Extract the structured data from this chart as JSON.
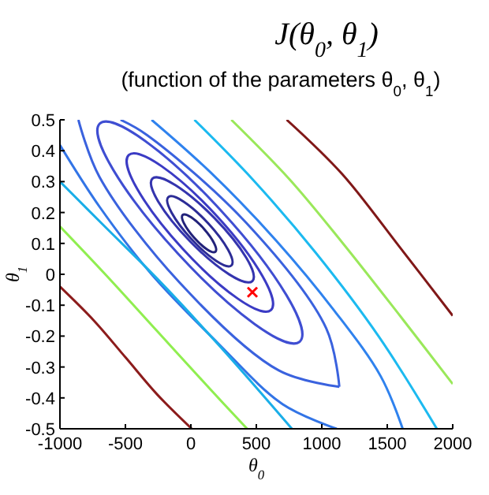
{
  "chart_data": {
    "type": "line",
    "title": "J(θ$_{0}$, θ$_{1}$)",
    "subtitle": "(function of the parameters θ$_{0}$, θ$_{1}$)",
    "xlabel": "θ$_{0}$",
    "ylabel": "θ$_{1}$",
    "xlim": [
      -1000,
      2000
    ],
    "xticks": [
      -1000,
      -500,
      0,
      500,
      1000,
      1500,
      2000
    ],
    "ylim": [
      -0.5,
      0.5
    ],
    "yticks": [
      -0.5,
      -0.4,
      -0.3,
      -0.2,
      -0.1,
      0,
      0.1,
      0.2,
      0.3,
      0.4,
      0.5
    ],
    "line_style": "solid",
    "series": [
      {
        "color": "#3a62de",
        "x": [
          -859,
          -698,
          -86,
          671,
          1134
        ],
        "values": [
          0.5,
          0.315,
          -0.027,
          -0.311,
          -0.364
        ]
      },
      {
        "color": "#3a62de",
        "x": [
          -537,
          -336,
          422,
          1034,
          1134
        ],
        "values": [
          0.5,
          0.451,
          0.167,
          -0.175,
          -0.364
        ]
      },
      {
        "color": "#3274e6",
        "x": [
          -1000,
          -700,
          -300,
          200,
          700,
          1114
        ],
        "values": [
          0.418,
          0.22,
          0.0,
          -0.22,
          -0.42,
          -0.5
        ]
      },
      {
        "color": "#2f82ee",
        "x": [
          -300,
          150,
          650,
          1100,
          1450,
          1618
        ],
        "values": [
          0.5,
          0.33,
          0.11,
          -0.12,
          -0.33,
          -0.5
        ]
      },
      {
        "color": "#1aaee8",
        "x": [
          -1000,
          -658,
          -255,
          228,
          772
        ],
        "values": [
          0.3,
          0.155,
          -0.015,
          -0.236,
          -0.5
        ]
      },
      {
        "color": "#1cbaf0",
        "x": [
          27,
          470,
          953,
          1436,
          1879
        ],
        "values": [
          0.5,
          0.308,
          0.07,
          -0.202,
          -0.5
        ]
      },
      {
        "color": "#90ee50",
        "x": [
          -1000,
          -658,
          -255,
          148,
          430
        ],
        "values": [
          0.155,
          0.002,
          -0.185,
          -0.372,
          -0.5
        ]
      },
      {
        "color": "#9ae85a",
        "x": [
          309,
          752,
          1154,
          1597,
          2000
        ],
        "values": [
          0.5,
          0.308,
          0.104,
          -0.134,
          -0.355
        ]
      },
      {
        "color": "#8c1c1c",
        "x": [
          -1000,
          -738,
          -497,
          -255,
          7
        ],
        "values": [
          -0.04,
          -0.151,
          -0.27,
          -0.39,
          -0.5
        ]
      },
      {
        "color": "#801818",
        "x": [
          732,
          1154,
          1597,
          2000
        ],
        "values": [
          0.5,
          0.325,
          0.087,
          -0.134
        ]
      },
      {
        "type": "scatter",
        "marker": "cross",
        "color": "#ff0000",
        "x": [
          470
        ],
        "values": [
          -0.058
        ]
      }
    ]
  }
}
